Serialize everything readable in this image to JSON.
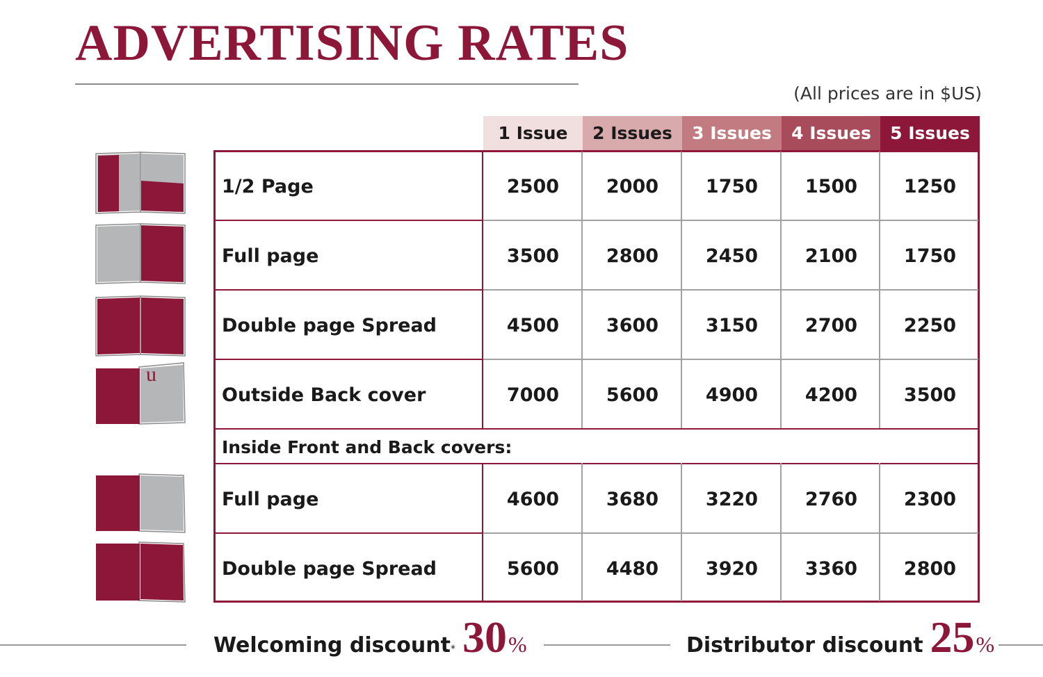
{
  "title": "ADVERTISING RATES",
  "note": "(All prices are in $US)",
  "colors": {
    "accent": "#8c1738",
    "grid": "#a0a0a0",
    "header_shades": [
      "#f1dede",
      "#d9aaab",
      "#c27b80",
      "#a84c5c",
      "#8c1738"
    ]
  },
  "columns": [
    "1 Issue",
    "2 Issues",
    "3 Issues",
    "4 Issues",
    "5 Issues"
  ],
  "rows": [
    {
      "label": "1/2 Page",
      "icon": "half-page-ad-icon",
      "values": [
        "2500",
        "2000",
        "1750",
        "1500",
        "1250"
      ]
    },
    {
      "label": "Full page",
      "icon": "full-page-ad-icon",
      "values": [
        "3500",
        "2800",
        "2450",
        "2100",
        "1750"
      ]
    },
    {
      "label": "Double page Spread",
      "icon": "double-page-spread-icon",
      "values": [
        "4500",
        "3600",
        "3150",
        "2700",
        "2250"
      ]
    },
    {
      "label": "Outside Back cover",
      "icon": "outside-back-cover-icon",
      "values": [
        "7000",
        "5600",
        "4900",
        "4200",
        "3500"
      ]
    }
  ],
  "section": {
    "label": "Inside Front and Back covers:",
    "rows": [
      {
        "label": "Full page",
        "icon": "inside-cover-full-page-icon",
        "values": [
          "4600",
          "3680",
          "3220",
          "2760",
          "2300"
        ]
      },
      {
        "label": "Double page Spread",
        "icon": "inside-cover-double-spread-icon",
        "values": [
          "5600",
          "4480",
          "3920",
          "3360",
          "2800"
        ]
      }
    ]
  },
  "icon_glyph": "u",
  "discounts": {
    "welcoming": {
      "label": "Welcoming discount",
      "marker": "*",
      "value": "30",
      "unit": "%"
    },
    "distributor": {
      "label": "Distributor discount",
      "value": "25",
      "unit": "%"
    }
  }
}
